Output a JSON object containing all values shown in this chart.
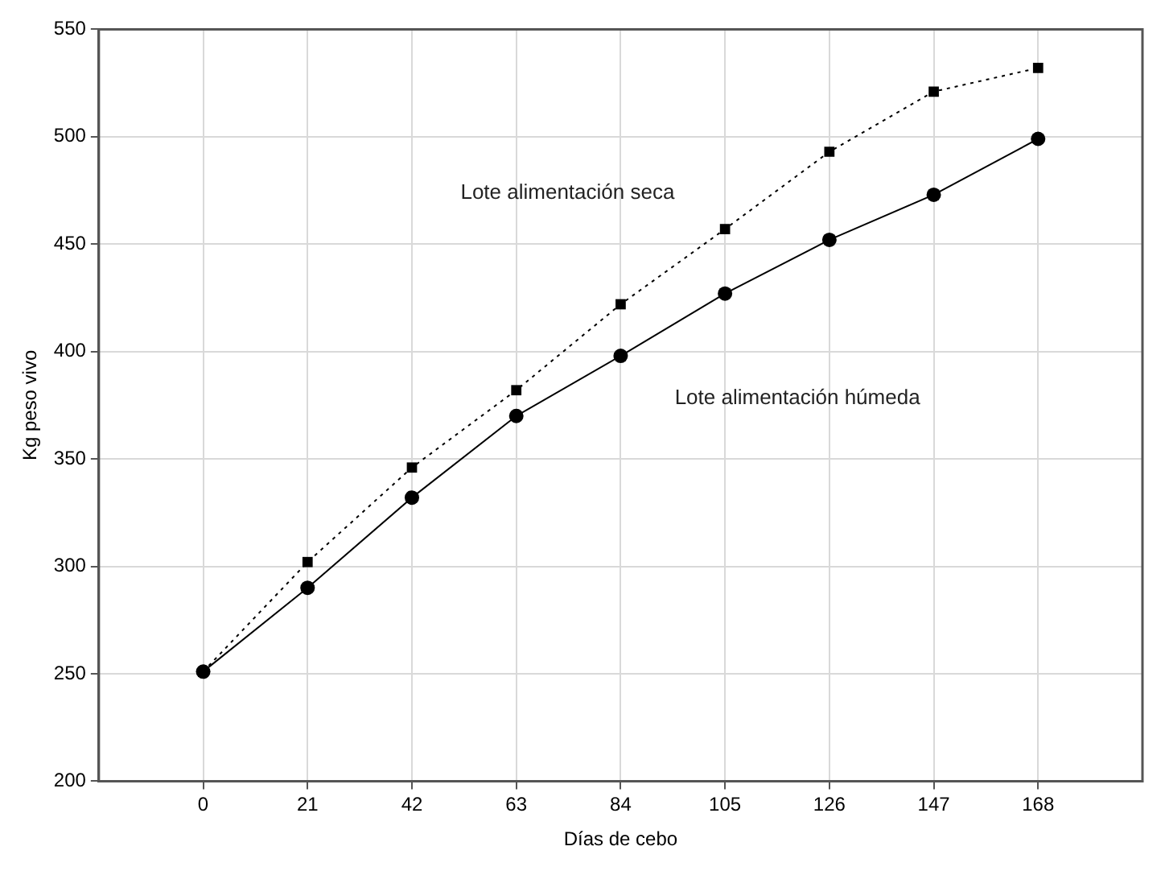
{
  "chart_data": {
    "type": "line",
    "xlabel": "Días de cebo",
    "ylabel": "Kg peso vivo",
    "x": [
      0,
      21,
      42,
      63,
      84,
      105,
      126,
      147,
      168
    ],
    "xlim": [
      -21,
      189
    ],
    "xticks": [
      0,
      21,
      42,
      63,
      84,
      105,
      126,
      147,
      168
    ],
    "ylim": [
      200,
      550
    ],
    "yticks": [
      200,
      250,
      300,
      350,
      400,
      450,
      500,
      550
    ],
    "grid": true,
    "series": [
      {
        "name": "Lote alimentación seca",
        "color": "#000000",
        "marker": "square",
        "line_style": "dotted",
        "values": [
          251,
          302,
          346,
          382,
          422,
          457,
          493,
          521,
          532
        ]
      },
      {
        "name": "Lote alimentación húmeda",
        "color": "#000000",
        "marker": "circle",
        "line_style": "solid",
        "values": [
          251,
          290,
          332,
          370,
          398,
          427,
          452,
          473,
          499
        ]
      }
    ]
  }
}
